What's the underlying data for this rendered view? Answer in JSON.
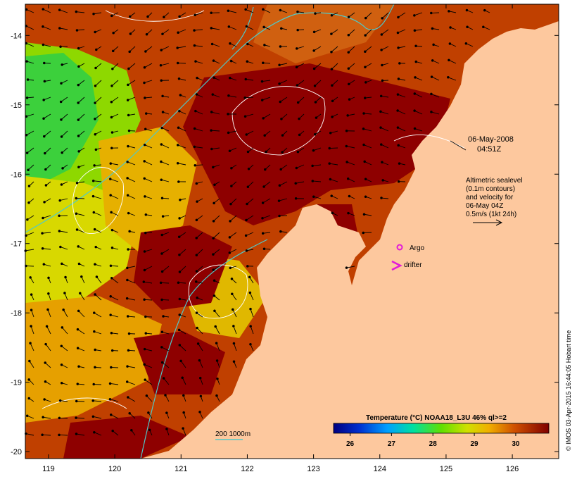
{
  "map": {
    "lon_range": [
      118.65,
      126.7
    ],
    "lat_range": [
      -20.1,
      -13.55
    ],
    "lon_ticks": [
      "119",
      "120",
      "121",
      "122",
      "123",
      "124",
      "125",
      "126"
    ],
    "lat_ticks": [
      "-14",
      "-15",
      "-16",
      "-17",
      "-18",
      "-19",
      "-20"
    ],
    "colors": {
      "land": "#fdc89e",
      "frame": "#000000",
      "contour_depth": "#4fc9c9",
      "contour_sealevel": "#ffffff",
      "argo": "#e21bd8",
      "drifter": "#e21bd8",
      "hot": "#8e0000",
      "warm": "#c04000",
      "mid": "#e6a000",
      "cool": "#9ed800",
      "coolest": "#3cd03c"
    }
  },
  "annotations": {
    "date": "06-May-2008",
    "time": "04:51Z",
    "altimetry_line1": "Altimetric sealevel",
    "altimetry_line2": "(0.1m contours)",
    "altimetry_line3": "and velocity for",
    "altimetry_line4": "06-May 04Z",
    "altimetry_line5": "0.5m/s (1kt 24h)",
    "argo_label": "Argo",
    "drifter_label": "drifter",
    "depth_legend": "200  1000m"
  },
  "colorbar": {
    "title": "Temperature (°C) NOAA18_L3U 46% ql>=2",
    "tick_labels": [
      "26",
      "27",
      "28",
      "29",
      "30"
    ],
    "tick_values": [
      26,
      27,
      28,
      29,
      30
    ],
    "range": [
      25.6,
      30.8
    ]
  },
  "credit": "© IMOS 03-Apr-2015 16:44:05 Hobart time"
}
